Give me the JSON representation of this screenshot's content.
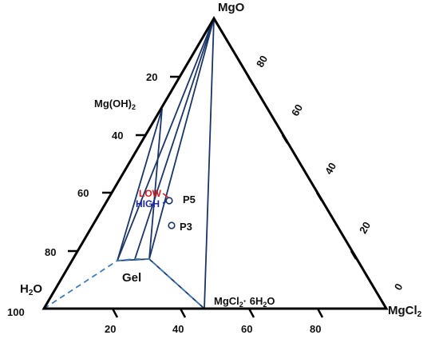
{
  "vertices": {
    "top": "MgO",
    "left": "H2O",
    "left_sub": "2",
    "right": "MgCl2",
    "right_sub": "2"
  },
  "left_ticks": [
    "20",
    "40",
    "60",
    "80",
    "100"
  ],
  "right_ticks": [
    "80",
    "60",
    "40",
    "20",
    "0"
  ],
  "bottom_ticks": [
    "20",
    "40",
    "60",
    "80"
  ],
  "labels": {
    "mgoh2": "Mg(OH)2",
    "mgoh2_main": "Mg(OH)",
    "mgoh2_sub": "2",
    "gel": "Gel",
    "mgcl2_hex": "MgCl2· 6H2O",
    "mgcl2_hex_a": "MgCl",
    "mgcl2_hex_b": "2",
    "mgcl2_hex_c": "· 6H",
    "mgcl2_hex_d": "2",
    "mgcl2_hex_e": "O",
    "p5": "P5",
    "p3": "P3",
    "low": "LOW",
    "high": "HIGH"
  },
  "colors": {
    "outline": "#000000",
    "phase_lines": "#1b3566",
    "gel_boundary": "#3f7bb5",
    "low": "#d42020",
    "high": "#1c2aa8"
  }
}
